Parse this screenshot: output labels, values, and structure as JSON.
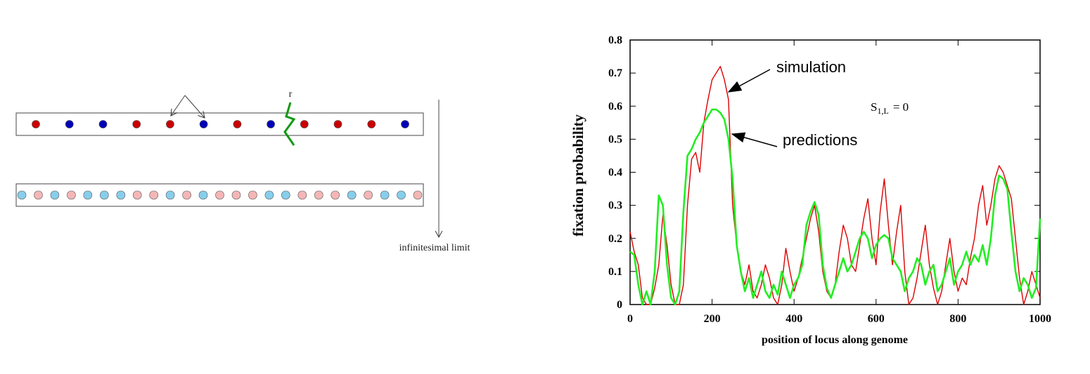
{
  "diagram": {
    "recombination_label": "r",
    "limit_label": "infinitesimal limit",
    "top_row_colors": [
      "red",
      "blue",
      "blue",
      "red",
      "red",
      "blue",
      "red",
      "blue",
      "red",
      "red",
      "red",
      "blue"
    ],
    "bottom_row_colors": [
      "lightblue",
      "pink",
      "lightblue",
      "pink",
      "lightblue",
      "lightblue",
      "lightblue",
      "pink",
      "pink",
      "lightblue",
      "pink",
      "lightblue",
      "pink",
      "pink",
      "pink",
      "lightblue",
      "lightblue",
      "pink",
      "pink",
      "pink",
      "lightblue",
      "pink",
      "lightblue",
      "lightblue",
      "pink"
    ],
    "colors": {
      "red": "#cc0000",
      "blue": "#0000bb",
      "lightblue": "#87ceeb",
      "pink": "#f4b6b6",
      "recombination": "#119911"
    }
  },
  "chart_data": {
    "type": "line",
    "title": "",
    "xlabel": "position of locus along genome",
    "ylabel": "fixation probability",
    "xlim": [
      0,
      1000
    ],
    "ylim": [
      0,
      0.8
    ],
    "xticks": [
      0,
      200,
      400,
      600,
      800,
      1000
    ],
    "yticks": [
      0,
      0.1,
      0.2,
      0.3,
      0.4,
      0.5,
      0.6,
      0.7,
      0.8
    ],
    "ytick_labels": [
      "0",
      "0.1",
      "0.2",
      "0.3",
      "0.4",
      "0.5",
      "0.6",
      "0.7",
      "0.8"
    ],
    "inset_text": "S",
    "inset_subscript": "1,L",
    "inset_value": "= 0",
    "annotations": [
      {
        "text": "simulation",
        "series": "simulation"
      },
      {
        "text": "predictions",
        "series": "predictions"
      }
    ],
    "series": [
      {
        "name": "simulation",
        "color": "#dd0000",
        "x": [
          0,
          10,
          20,
          30,
          40,
          50,
          60,
          70,
          80,
          90,
          100,
          110,
          120,
          130,
          140,
          150,
          160,
          170,
          180,
          190,
          200,
          210,
          220,
          230,
          240,
          250,
          260,
          270,
          280,
          290,
          300,
          310,
          320,
          330,
          340,
          350,
          360,
          370,
          380,
          390,
          400,
          410,
          420,
          430,
          440,
          450,
          460,
          470,
          480,
          490,
          500,
          510,
          520,
          530,
          540,
          550,
          560,
          570,
          580,
          590,
          600,
          610,
          620,
          630,
          640,
          650,
          660,
          670,
          680,
          690,
          700,
          710,
          720,
          730,
          740,
          750,
          760,
          770,
          780,
          790,
          800,
          810,
          820,
          830,
          840,
          850,
          860,
          870,
          880,
          890,
          900,
          910,
          920,
          930,
          940,
          950,
          960,
          970,
          980,
          990,
          1000
        ],
        "y": [
          0.22,
          0.16,
          0.12,
          0.02,
          0.0,
          0.0,
          0.05,
          0.12,
          0.27,
          0.18,
          0.06,
          0.0,
          0.0,
          0.06,
          0.3,
          0.44,
          0.46,
          0.4,
          0.55,
          0.62,
          0.68,
          0.7,
          0.72,
          0.68,
          0.62,
          0.3,
          0.18,
          0.1,
          0.06,
          0.12,
          0.04,
          0.02,
          0.06,
          0.12,
          0.08,
          0.02,
          0.0,
          0.06,
          0.17,
          0.1,
          0.04,
          0.08,
          0.14,
          0.2,
          0.26,
          0.3,
          0.22,
          0.1,
          0.04,
          0.02,
          0.06,
          0.16,
          0.24,
          0.2,
          0.12,
          0.1,
          0.18,
          0.26,
          0.32,
          0.2,
          0.12,
          0.28,
          0.38,
          0.24,
          0.12,
          0.22,
          0.3,
          0.1,
          0.0,
          0.02,
          0.08,
          0.16,
          0.24,
          0.12,
          0.05,
          0.0,
          0.04,
          0.12,
          0.2,
          0.1,
          0.04,
          0.08,
          0.06,
          0.14,
          0.2,
          0.3,
          0.36,
          0.24,
          0.3,
          0.38,
          0.42,
          0.4,
          0.36,
          0.32,
          0.2,
          0.08,
          0.0,
          0.04,
          0.1,
          0.06,
          0.02
        ]
      },
      {
        "name": "predictions",
        "color": "#22ee22",
        "x": [
          0,
          10,
          20,
          30,
          40,
          50,
          60,
          70,
          80,
          90,
          100,
          110,
          120,
          130,
          140,
          150,
          160,
          170,
          180,
          190,
          200,
          210,
          220,
          230,
          240,
          250,
          260,
          270,
          280,
          290,
          300,
          310,
          320,
          330,
          340,
          350,
          360,
          370,
          380,
          390,
          400,
          410,
          420,
          430,
          440,
          450,
          460,
          470,
          480,
          490,
          500,
          510,
          520,
          530,
          540,
          550,
          560,
          570,
          580,
          590,
          600,
          610,
          620,
          630,
          640,
          650,
          660,
          670,
          680,
          690,
          700,
          710,
          720,
          730,
          740,
          750,
          760,
          770,
          780,
          790,
          800,
          810,
          820,
          830,
          840,
          850,
          860,
          870,
          880,
          890,
          900,
          910,
          920,
          930,
          940,
          950,
          960,
          970,
          980,
          990,
          1000
        ],
        "y": [
          0.16,
          0.15,
          0.06,
          0.0,
          0.04,
          0.0,
          0.1,
          0.33,
          0.3,
          0.12,
          0.02,
          0.0,
          0.04,
          0.28,
          0.45,
          0.47,
          0.5,
          0.52,
          0.55,
          0.57,
          0.59,
          0.59,
          0.58,
          0.56,
          0.5,
          0.38,
          0.18,
          0.1,
          0.04,
          0.08,
          0.02,
          0.06,
          0.1,
          0.04,
          0.02,
          0.06,
          0.03,
          0.1,
          0.06,
          0.02,
          0.06,
          0.08,
          0.12,
          0.24,
          0.28,
          0.31,
          0.27,
          0.12,
          0.05,
          0.02,
          0.06,
          0.1,
          0.14,
          0.1,
          0.12,
          0.16,
          0.2,
          0.22,
          0.2,
          0.14,
          0.18,
          0.2,
          0.21,
          0.2,
          0.14,
          0.12,
          0.1,
          0.04,
          0.08,
          0.1,
          0.14,
          0.12,
          0.06,
          0.1,
          0.12,
          0.04,
          0.06,
          0.1,
          0.14,
          0.06,
          0.1,
          0.12,
          0.16,
          0.12,
          0.15,
          0.13,
          0.18,
          0.12,
          0.2,
          0.33,
          0.39,
          0.38,
          0.35,
          0.22,
          0.1,
          0.04,
          0.08,
          0.06,
          0.02,
          0.05,
          0.26
        ]
      }
    ]
  }
}
